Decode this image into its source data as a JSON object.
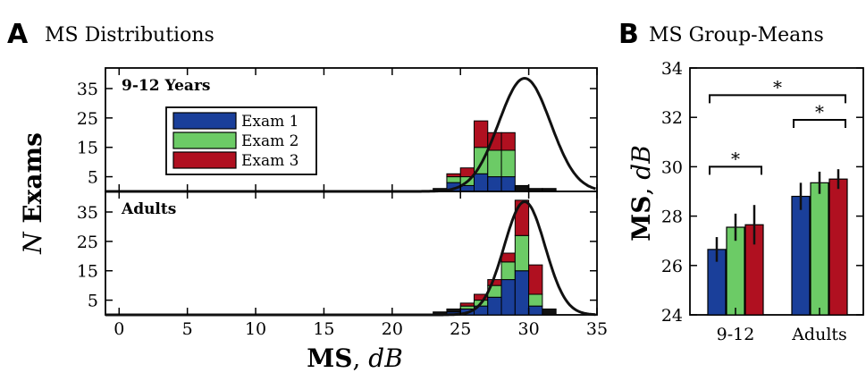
{
  "panel_a": {
    "letter": "A",
    "title": "MS Distributions",
    "y_axis_label_italic": "N",
    "y_axis_label_rest": " Exams",
    "x_axis_label_bold": "MS",
    "x_axis_label_sep": ", ",
    "x_axis_label_italic": "dB",
    "legend": [
      {
        "label": "Exam 1",
        "color": "#1a3f9a"
      },
      {
        "label": "Exam 2",
        "color": "#6ccb66"
      },
      {
        "label": "Exam 3",
        "color": "#b01020"
      }
    ]
  },
  "panel_b": {
    "letter": "B",
    "title": "MS Group-Means",
    "y_axis_label_bold": "MS",
    "y_axis_label_sep": ", ",
    "y_axis_label_italic": "dB"
  },
  "chart_data": [
    {
      "type": "bar",
      "stacked": true,
      "subplot": "9-12 Years",
      "label": "9-12 Years",
      "bin_width": 1,
      "x": [
        23.5,
        24.5,
        25.5,
        26.5,
        27.5,
        28.5,
        29.5,
        30.5,
        31.5
      ],
      "series": [
        {
          "name": "Exam 1",
          "values": [
            0,
            3,
            2,
            6,
            5,
            5,
            0,
            0,
            0
          ]
        },
        {
          "name": "Exam 2",
          "values": [
            0,
            2,
            3,
            9,
            9,
            9,
            0,
            0,
            0
          ]
        },
        {
          "name": "Exam 3",
          "values": [
            0,
            1,
            3,
            9,
            6,
            6,
            0,
            0,
            0
          ]
        },
        {
          "name": "other",
          "values": [
            1,
            0,
            0,
            0,
            0,
            0,
            2,
            1,
            1
          ]
        }
      ],
      "fit_curve": {
        "type": "normal",
        "mean": 29.7,
        "sd": 1.9,
        "peak": 38.5
      },
      "xlim": [
        -1,
        35
      ],
      "ylim": [
        0,
        42
      ],
      "yticks": [
        5,
        15,
        25,
        35
      ],
      "xticks": [
        0,
        5,
        10,
        15,
        20,
        25,
        30,
        35
      ]
    },
    {
      "type": "bar",
      "stacked": true,
      "subplot": "Adults",
      "label": "Adults",
      "bin_width": 1,
      "x": [
        23.5,
        24.5,
        25.5,
        26.5,
        27.5,
        28.5,
        29.5,
        30.5,
        31.5
      ],
      "series": [
        {
          "name": "Exam 1",
          "values": [
            0,
            1,
            2,
            3,
            6,
            12,
            15,
            3,
            0
          ]
        },
        {
          "name": "Exam 2",
          "values": [
            0,
            0,
            1,
            2,
            4,
            6,
            12,
            4,
            0
          ]
        },
        {
          "name": "Exam 3",
          "values": [
            0,
            0,
            1,
            2,
            2,
            3,
            12,
            10,
            0
          ]
        },
        {
          "name": "other",
          "values": [
            1,
            1,
            0,
            0,
            0,
            0,
            0,
            0,
            2
          ]
        }
      ],
      "fit_curve": {
        "type": "normal",
        "mean": 29.7,
        "sd": 1.5,
        "peak": 38.5
      },
      "xlim": [
        -1,
        35
      ],
      "ylim": [
        0,
        42
      ],
      "yticks": [
        5,
        15,
        25,
        35
      ],
      "xticks": [
        0,
        5,
        10,
        15,
        20,
        25,
        30,
        35
      ]
    },
    {
      "type": "bar",
      "categories": [
        "9-12",
        "Adults"
      ],
      "series": [
        {
          "name": "Exam 1",
          "values": [
            26.65,
            28.8
          ],
          "errors": [
            0.5,
            0.55
          ]
        },
        {
          "name": "Exam 2",
          "values": [
            27.55,
            29.35
          ],
          "errors": [
            0.55,
            0.45
          ]
        },
        {
          "name": "Exam 3",
          "values": [
            27.65,
            29.5
          ],
          "errors": [
            0.8,
            0.4
          ]
        }
      ],
      "ylim": [
        24,
        34
      ],
      "yticks": [
        24,
        26,
        28,
        30,
        32,
        34
      ],
      "significance": [
        {
          "from": "9-12 Exam 1",
          "to": "9-12 Exam 3",
          "y": 30.0,
          "label": "*"
        },
        {
          "from": "Adults Exam 1",
          "to": "Adults Exam 3",
          "y": 31.9,
          "label": "*"
        },
        {
          "from": "9-12 Exam 1",
          "to": "Adults Exam 3",
          "y": 32.9,
          "label": "*"
        }
      ]
    }
  ]
}
